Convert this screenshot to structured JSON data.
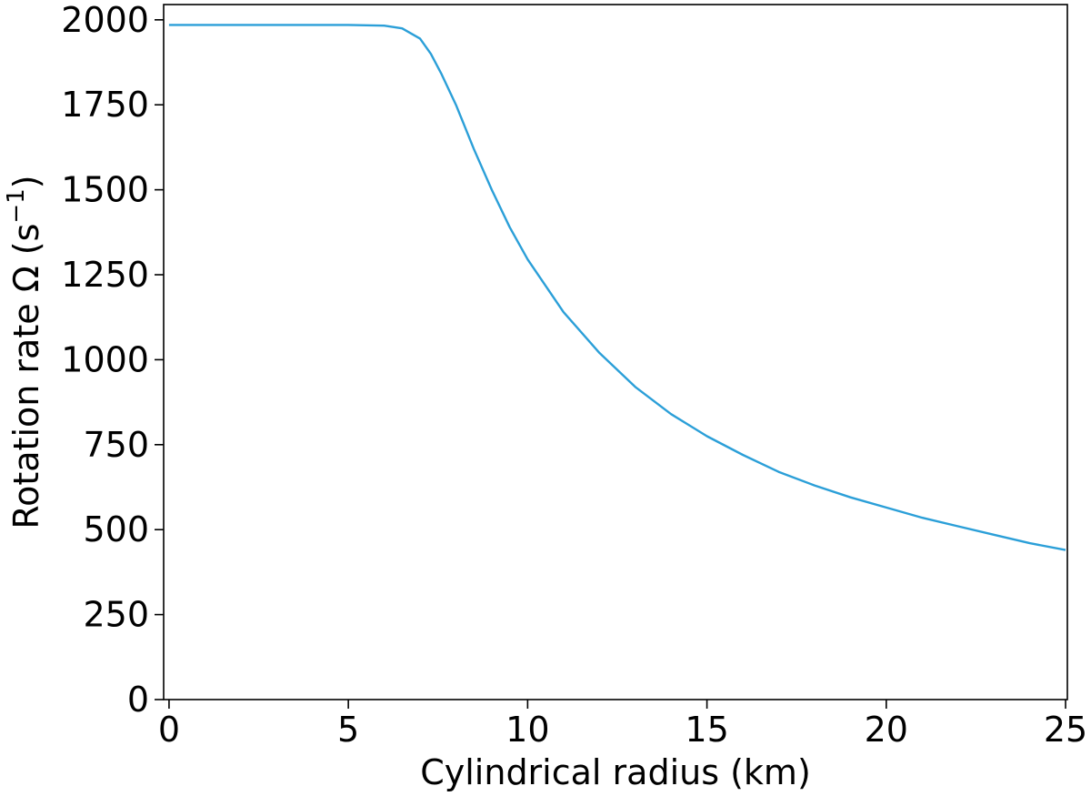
{
  "chart_data": {
    "type": "line",
    "title": "",
    "xlabel": "Cylindrical radius (km)",
    "ylabel": "Rotation rate Ω (s",
    "ylabel_sup": "−1",
    "ylabel_close": ")",
    "xlim": [
      -0.15,
      25.05
    ],
    "ylim": [
      0,
      2045
    ],
    "xticks": [
      0,
      5,
      10,
      15,
      20,
      25
    ],
    "xtick_labels": [
      "0",
      "5",
      "10",
      "15",
      "20",
      "25"
    ],
    "yticks": [
      0,
      250,
      500,
      750,
      1000,
      1250,
      1500,
      1750,
      2000
    ],
    "ytick_labels": [
      "0",
      "250",
      "500",
      "750",
      "1000",
      "1250",
      "1500",
      "1750",
      "2000"
    ],
    "grid": false,
    "series": [
      {
        "color": "#2b9fd8",
        "x": [
          0,
          1,
          2,
          3,
          4,
          5,
          6,
          6.5,
          7,
          7.3,
          7.6,
          8,
          8.5,
          9,
          9.5,
          10,
          11,
          12,
          13,
          14,
          15,
          16,
          17,
          18,
          19,
          20,
          21,
          22,
          23,
          24,
          25
        ],
        "y": [
          1985,
          1985,
          1985,
          1985,
          1985,
          1985,
          1983,
          1975,
          1945,
          1900,
          1840,
          1750,
          1620,
          1500,
          1390,
          1295,
          1140,
          1020,
          920,
          840,
          775,
          720,
          670,
          630,
          595,
          565,
          535,
          510,
          485,
          460,
          440
        ]
      }
    ]
  }
}
